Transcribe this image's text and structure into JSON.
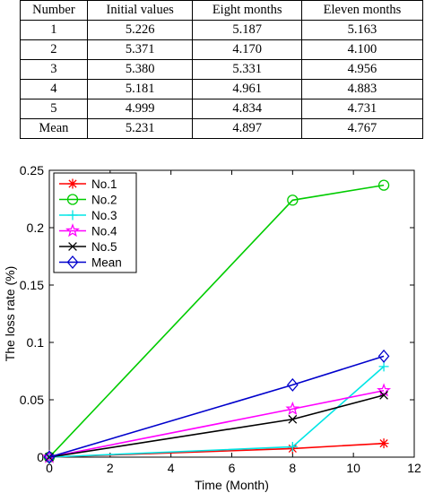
{
  "table": {
    "headers": [
      "Number",
      "Initial values",
      "Eight months",
      "Eleven months"
    ],
    "rows": [
      [
        "1",
        "5.226",
        "5.187",
        "5.163"
      ],
      [
        "2",
        "5.371",
        "4.170",
        "4.100"
      ],
      [
        "3",
        "5.380",
        "5.331",
        "4.956"
      ],
      [
        "4",
        "5.181",
        "4.961",
        "4.883"
      ],
      [
        "5",
        "4.999",
        "4.834",
        "4.731"
      ],
      [
        "Mean",
        "5.231",
        "4.897",
        "4.767"
      ]
    ]
  },
  "chart_data": {
    "type": "line",
    "xlabel": "Time (Month)",
    "ylabel": "The loss rate (%)",
    "xlim": [
      0,
      12
    ],
    "ylim": [
      0,
      0.25
    ],
    "xticks": [
      0,
      2,
      4,
      6,
      8,
      10,
      12
    ],
    "yticks": [
      0,
      0.05,
      0.1,
      0.15,
      0.2,
      0.25
    ],
    "ytick_labels": [
      "0",
      "0.05",
      "0.1",
      "0.15",
      "0.2",
      "0.25"
    ],
    "x": [
      0,
      8,
      11
    ],
    "legend_position": "top-left",
    "grid": false,
    "series": [
      {
        "name": "No.1",
        "color": "#ff0000",
        "marker": "asterisk",
        "values": [
          0,
          0.0075,
          0.012
        ]
      },
      {
        "name": "No.2",
        "color": "#00cc00",
        "marker": "circle",
        "values": [
          0,
          0.224,
          0.237
        ]
      },
      {
        "name": "No.3",
        "color": "#00e5e5",
        "marker": "plus",
        "values": [
          0,
          0.009,
          0.079
        ]
      },
      {
        "name": "No.4",
        "color": "#ff00ff",
        "marker": "star",
        "values": [
          0,
          0.042,
          0.058
        ]
      },
      {
        "name": "No.5",
        "color": "#000000",
        "marker": "x",
        "values": [
          0,
          0.033,
          0.054
        ]
      },
      {
        "name": "Mean",
        "color": "#0000cc",
        "marker": "diamond",
        "values": [
          0,
          0.063,
          0.088
        ]
      }
    ]
  }
}
